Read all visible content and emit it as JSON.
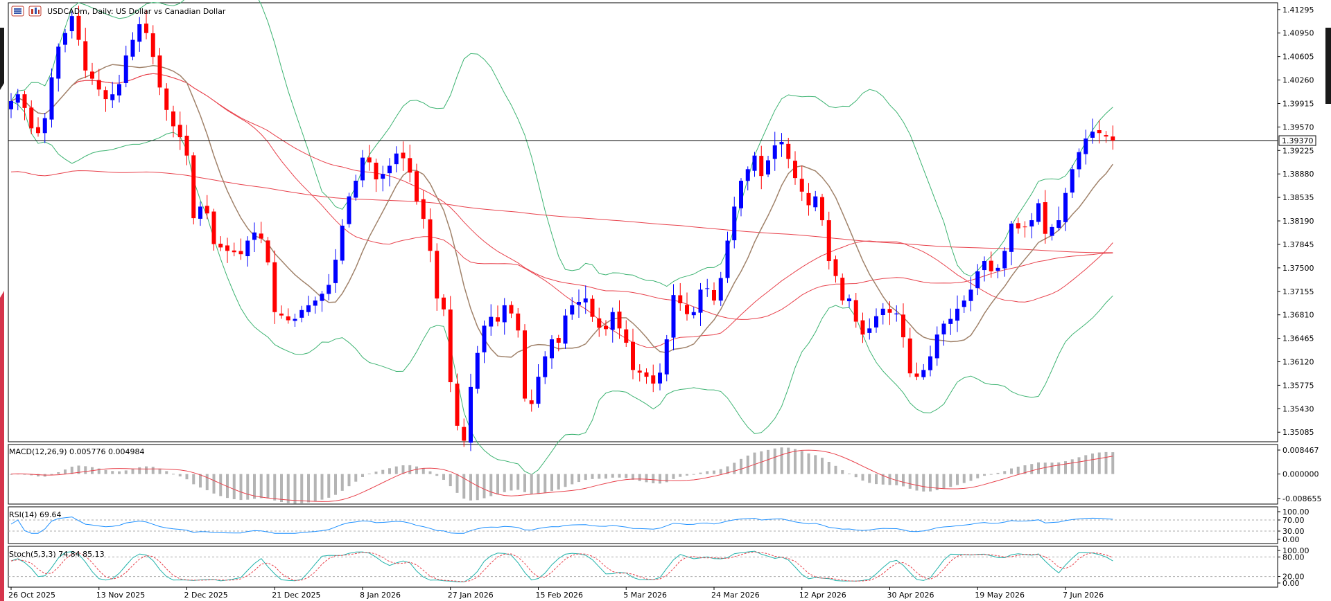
{
  "title": {
    "symbol": "USDCADm",
    "text": "USDCADm, Daily:  US Dollar vs Canadian Dollar",
    "icons": [
      "chart-menu-icon",
      "chart-type-icon"
    ]
  },
  "colors": {
    "bull": "#0000ff",
    "bear": "#ff0000",
    "sma_fast": "#a0826a",
    "ma_red": "#e8414b",
    "bollinger": "#3cb371",
    "rsi": "#1e90ff",
    "stoch_main": "#20b2aa",
    "stoch_signal": "#e8414b",
    "macd_hist": "#b4b4b4",
    "macd_signal": "#e8414b",
    "side_accent": "#d6354c"
  },
  "price_axis": {
    "ticks": [
      "1.41295",
      "1.40950",
      "1.40605",
      "1.40260",
      "1.39915",
      "1.39570",
      "1.39225",
      "1.38880",
      "1.38535",
      "1.38190",
      "1.37845",
      "1.37500",
      "1.37155",
      "1.36810",
      "1.36465",
      "1.36120",
      "1.35775",
      "1.35430",
      "1.35085"
    ],
    "tick_values": [
      1.41295,
      1.4095,
      1.40605,
      1.4026,
      1.39915,
      1.3957,
      1.39225,
      1.3888,
      1.38535,
      1.3819,
      1.37845,
      1.375,
      1.37155,
      1.3681,
      1.36465,
      1.3612,
      1.35775,
      1.3543,
      1.35085
    ],
    "range": [
      1.34945,
      1.41395
    ],
    "current_price": 1.3937,
    "current_label": "1.39370"
  },
  "time_axis": {
    "labels": [
      "26 Oct 2025",
      "13 Nov 2025",
      "2 Dec 2025",
      "21 Dec 2025",
      "8 Jan 2026",
      "27 Jan 2026",
      "15 Feb 2026",
      "5 Mar 2026",
      "24 Mar 2026",
      "12 Apr 2026",
      "30 Apr 2026",
      "19 May 2026",
      "7 Jun 2026"
    ],
    "label_bar_index": [
      0,
      13,
      26,
      39,
      52,
      65,
      78,
      91,
      104,
      117,
      130,
      143,
      156
    ]
  },
  "macd": {
    "label": "MACD(12,26,9) 0.005776 0.004984",
    "ticks": [
      "0.008467",
      "0.000000",
      "-0.008655"
    ],
    "tick_values": [
      0.008467,
      0,
      -0.008655
    ]
  },
  "rsi": {
    "label": "RSI(14) 69.64",
    "ticks": [
      "100.00",
      "70.00",
      "30.00",
      "0.00"
    ],
    "tick_values": [
      100,
      70,
      30,
      0
    ]
  },
  "stoch": {
    "label": "Stoch(5,3,3) 74.84 85.13",
    "ticks": [
      "100.00",
      "80.00",
      "20.00",
      "0.00"
    ],
    "tick_values": [
      100,
      80,
      20,
      0
    ]
  },
  "chart_data": {
    "type": "candlestick",
    "symbol": "USDCADm",
    "timeframe": "Daily",
    "ylim": [
      1.34945,
      1.41395
    ],
    "candles_anchor_close": [
      1.3995,
      1.4005,
      1.3985,
      1.3955,
      1.3948,
      1.397,
      1.403,
      1.4075,
      1.4095,
      1.412,
      1.4085,
      1.404,
      1.4028,
      1.4012,
      1.3998,
      1.4005,
      1.402,
      1.4062,
      1.4085,
      1.4108,
      1.4095,
      1.406,
      1.4015,
      1.3982,
      1.3958,
      1.3942,
      1.3915,
      1.3823,
      1.384,
      1.383,
      1.3785,
      1.378,
      1.3775,
      1.3773,
      1.377,
      1.379,
      1.3802,
      1.3793,
      1.3758,
      1.3685,
      1.368,
      1.3673,
      1.3675,
      1.3688,
      1.3695,
      1.3702,
      1.3712,
      1.3725,
      1.3762,
      1.3812,
      1.3855,
      1.3878,
      1.3912,
      1.3905,
      1.388,
      1.3888,
      1.39,
      1.3918,
      1.3911,
      1.389,
      1.3848,
      1.3822,
      1.3775,
      1.3705,
      1.3689,
      1.3582,
      1.3518,
      1.3496,
      1.3575,
      1.3625,
      1.3665,
      1.3678,
      1.3671,
      1.3695,
      1.3683,
      1.3658,
      1.3558,
      1.355,
      1.359,
      1.362,
      1.3645,
      1.364,
      1.368,
      1.3695,
      1.37,
      1.3705,
      1.3678,
      1.3662,
      1.366,
      1.3685,
      1.3661,
      1.364,
      1.36,
      1.3596,
      1.359,
      1.358,
      1.3596,
      1.3645,
      1.371,
      1.3698,
      1.3682,
      1.3685,
      1.3718,
      1.372,
      1.3702,
      1.3735,
      1.379,
      1.384,
      1.3878,
      1.3895,
      1.3915,
      1.3885,
      1.3908,
      1.393,
      1.3935,
      1.391,
      1.3882,
      1.3862,
      1.3842,
      1.3855,
      1.382,
      1.376,
      1.3738,
      1.3702,
      1.3705,
      1.3671,
      1.3652,
      1.3661,
      1.3679,
      1.369,
      1.3684,
      1.3683,
      1.3648,
      1.3595,
      1.359,
      1.36,
      1.362,
      1.3652,
      1.3668,
      1.3675,
      1.369,
      1.3702,
      1.3718,
      1.3745,
      1.376,
      1.3745,
      1.375,
      1.3775,
      1.3815,
      1.3808,
      1.381,
      1.382,
      1.3845,
      1.38,
      1.381,
      1.382,
      1.386,
      1.3895,
      1.392,
      1.394,
      1.395,
      1.3948,
      1.3943,
      1.3937
    ],
    "note_ma_lines": "moving averages and Bollinger bands drawn on price panel"
  }
}
